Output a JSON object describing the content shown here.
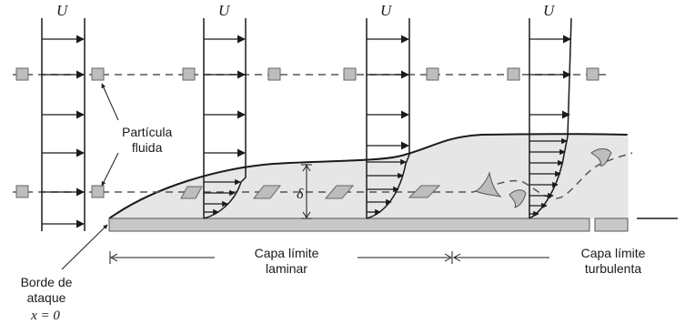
{
  "diagram": {
    "free_stream_symbol": "U",
    "thickness_symbol": "δ",
    "origin_label": "x = 0",
    "labels": {
      "particle_line1": "Partícula",
      "particle_line2": "fluida",
      "leading_edge_line1": "Borde de",
      "leading_edge_line2": "ataque",
      "laminar_line1": "Capa límite",
      "laminar_line2": "laminar",
      "turbulent_line1": "Capa límite",
      "turbulent_line2": "turbulenta"
    },
    "colors": {
      "boundary_layer_fill": "#e6e6e6",
      "particle_fill": "#bdbdbd",
      "plate_fill": "#c8c8c8",
      "ink": "#1a1a1a"
    }
  }
}
